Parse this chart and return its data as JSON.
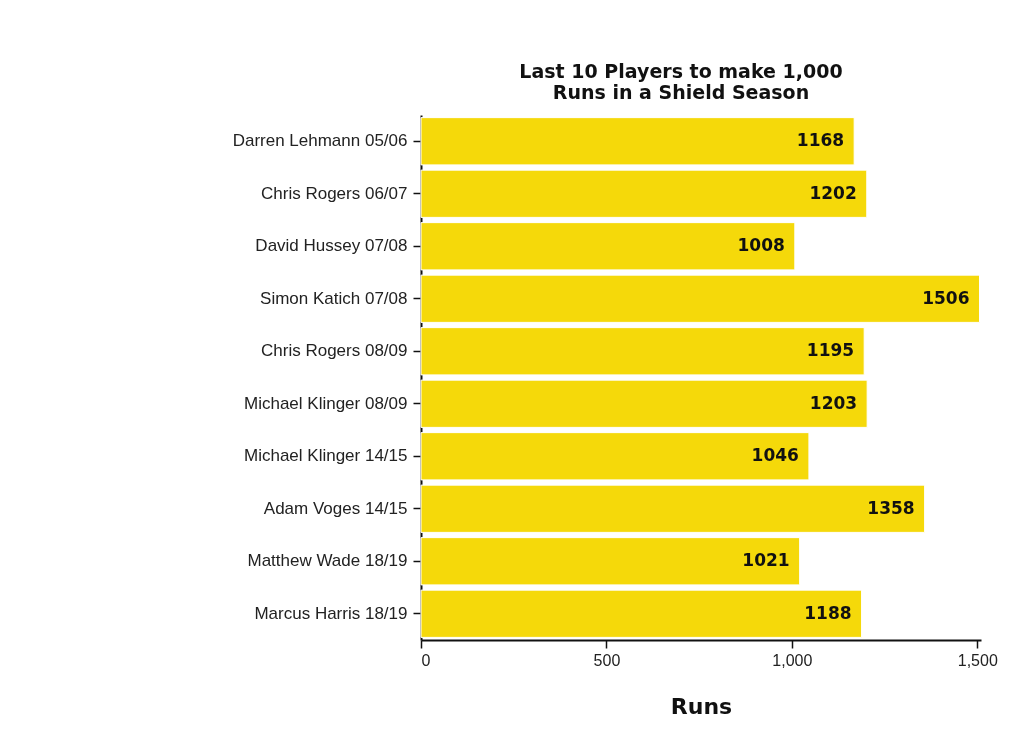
{
  "chart_data": {
    "type": "bar",
    "orientation": "horizontal",
    "title": "Last 10 Players to make 1,000 Runs in a Shield Season",
    "xlabel": "Runs",
    "categories": [
      "Darren Lehmann 05/06",
      "Chris Rogers 06/07",
      "David Hussey 07/08",
      "Simon Katich 07/08",
      "Chris Rogers 08/09",
      "Michael Klinger 08/09",
      "Michael Klinger 14/15",
      "Adam Voges 14/15",
      "Matthew Wade 18/19",
      "Marcus Harris 18/19"
    ],
    "values": [
      1168,
      1202,
      1008,
      1506,
      1195,
      1203,
      1046,
      1358,
      1021,
      1188
    ],
    "color": "#f5d90a",
    "xlim": [
      0,
      1510
    ],
    "xticks": [
      0,
      500,
      {
        "value": 1000,
        "label": "1,000"
      },
      {
        "value": 1500,
        "label": "1,500"
      }
    ],
    "data_labels": true,
    "grid": false
  }
}
